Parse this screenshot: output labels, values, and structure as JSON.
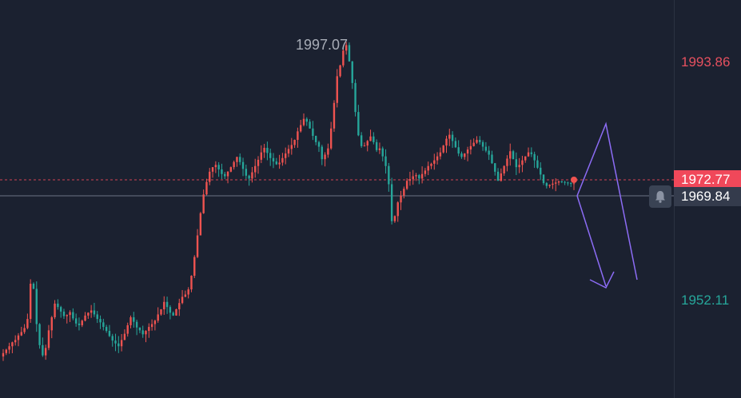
{
  "colors": {
    "background": "#1b2130",
    "up": "#ef5350",
    "down": "#26a69a",
    "current_tag": "#f0485a",
    "hover_tag": "#343b4c",
    "arrow": "#8c6cf5"
  },
  "price_axis": {
    "top_label": "1993.86",
    "bottom_label": "1952.11",
    "current_price": "1972.77",
    "crosshair_price": "1969.84"
  },
  "high_marker": "1997.07",
  "icons": [
    "bell-icon"
  ],
  "chart_data": {
    "type": "candlestick",
    "title": "",
    "ylim": [
      1935,
      2005
    ],
    "current_price": 1972.77,
    "crosshair_price": 1969.84,
    "high": 1997.07,
    "close_series": [
      1942.9,
      1943.5,
      1944.1,
      1944.8,
      1945.2,
      1946.0,
      1946.6,
      1947.3,
      1948.9,
      1955.1,
      1954.2,
      1948.0,
      1944.3,
      1942.5,
      1943.8,
      1946.9,
      1949.2,
      1951.6,
      1951.0,
      1950.2,
      1949.4,
      1949.6,
      1950.1,
      1949.0,
      1948.1,
      1947.8,
      1948.6,
      1949.5,
      1950.0,
      1950.4,
      1949.7,
      1948.9,
      1948.3,
      1947.5,
      1946.8,
      1945.9,
      1945.1,
      1944.6,
      1944.1,
      1945.2,
      1946.3,
      1947.8,
      1949.2,
      1948.4,
      1947.4,
      1946.9,
      1946.2,
      1946.8,
      1947.5,
      1948.0,
      1948.6,
      1949.7,
      1950.6,
      1951.9,
      1951.0,
      1950.0,
      1949.5,
      1950.6,
      1951.7,
      1952.8,
      1953.2,
      1954.1,
      1956.5,
      1959.8,
      1963.6,
      1967.5,
      1970.8,
      1973.0,
      1974.8,
      1975.6,
      1976.0,
      1975.2,
      1974.4,
      1974.0,
      1974.8,
      1975.6,
      1976.5,
      1977.4,
      1976.5,
      1975.3,
      1974.1,
      1973.6,
      1974.7,
      1975.8,
      1976.9,
      1978.2,
      1979.0,
      1978.1,
      1977.2,
      1976.6,
      1976.1,
      1976.4,
      1977.2,
      1978.0,
      1978.8,
      1979.5,
      1980.4,
      1981.9,
      1983.0,
      1984.1,
      1983.6,
      1982.4,
      1981.1,
      1980.0,
      1979.2,
      1977.0,
      1977.8,
      1978.9,
      1982.4,
      1986.9,
      1991.6,
      1993.5,
      1996.1,
      1997.07,
      1994.2,
      1990.4,
      1985.3,
      1981.2,
      1979.3,
      1979.4,
      1980.2,
      1981.0,
      1980.0,
      1978.6,
      1978.9,
      1977.5,
      1975.8,
      1972.6,
      1966.1,
      1967.0,
      1969.4,
      1970.6,
      1971.8,
      1973.2,
      1973.5,
      1974.0,
      1974.2,
      1973.6,
      1974.4,
      1975.0,
      1975.8,
      1976.2,
      1976.8,
      1977.5,
      1978.2,
      1979.4,
      1980.6,
      1981.3,
      1980.2,
      1979.1,
      1978.0,
      1977.4,
      1978.0,
      1978.7,
      1979.3,
      1979.9,
      1980.4,
      1980.0,
      1979.2,
      1978.5,
      1977.8,
      1976.3,
      1974.8,
      1973.2,
      1974.5,
      1975.8,
      1977.1,
      1978.4,
      1977.0,
      1975.6,
      1976.0,
      1976.8,
      1977.5,
      1978.2,
      1977.9,
      1976.8,
      1975.5,
      1974.3,
      1972.8,
      1972.3,
      1972.5,
      1972.7,
      1972.9,
      1973.1,
      1973.0,
      1972.9,
      1972.8,
      1972.7,
      1972.77
    ]
  }
}
